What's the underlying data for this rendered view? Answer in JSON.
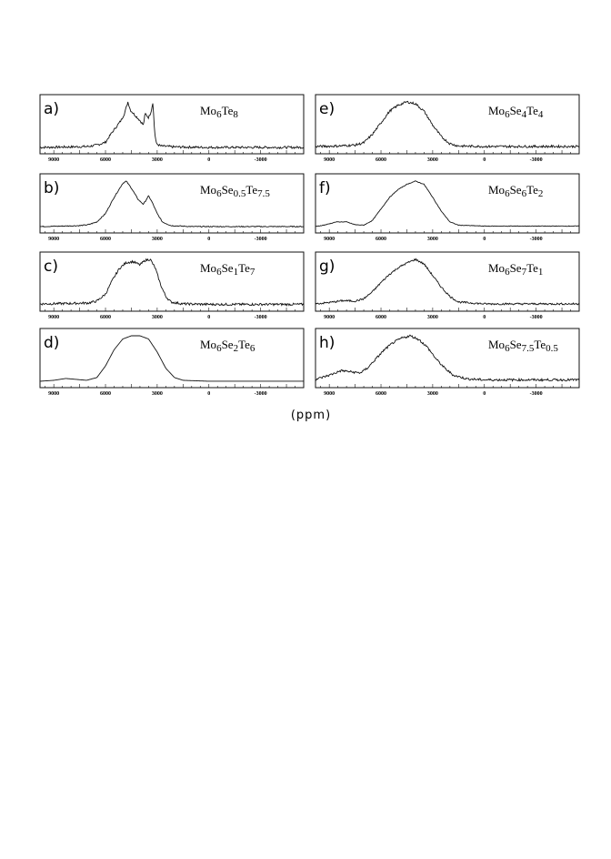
{
  "figure": {
    "xlabel": "(ppm)",
    "x_ticks": [
      9000,
      6000,
      3000,
      0,
      -3000
    ],
    "x_tick_labels": [
      "9000",
      "6000",
      "3000",
      "0",
      "-3000"
    ]
  },
  "chart_data": [
    {
      "type": "line",
      "panel": "a)",
      "formula": {
        "parts": [
          [
            "Mo",
            ""
          ],
          [
            "6",
            "sub"
          ],
          [
            "Te",
            ""
          ],
          [
            "8",
            "sub"
          ]
        ]
      },
      "xlabel": "(ppm)",
      "xlim": [
        9800,
        -5500
      ],
      "reversed_x": true,
      "grid": false,
      "baseline_noise": 0.025,
      "series": [
        {
          "points": [
            [
              9800,
              0.02
            ],
            [
              8000,
              0.03
            ],
            [
              7000,
              0.04
            ],
            [
              6500,
              0.07
            ],
            [
              6000,
              0.13
            ],
            [
              5700,
              0.3
            ],
            [
              5400,
              0.45
            ],
            [
              5100,
              0.6
            ],
            [
              4900,
              0.75
            ],
            [
              4700,
              1.0
            ],
            [
              4550,
              0.82
            ],
            [
              4300,
              0.72
            ],
            [
              4000,
              0.6
            ],
            [
              3800,
              0.5
            ],
            [
              3700,
              0.75
            ],
            [
              3500,
              0.66
            ],
            [
              3350,
              0.8
            ],
            [
              3250,
              1.0
            ],
            [
              3150,
              0.35
            ],
            [
              3050,
              0.1
            ],
            [
              2800,
              0.05
            ],
            [
              2000,
              0.03
            ],
            [
              0,
              0.02
            ],
            [
              -5500,
              0.02
            ]
          ]
        }
      ]
    },
    {
      "type": "line",
      "panel": "b)",
      "formula": {
        "parts": [
          [
            "Mo",
            ""
          ],
          [
            "6",
            "sub"
          ],
          [
            "Se",
            ""
          ],
          [
            "0.5",
            "sub"
          ],
          [
            "Te",
            ""
          ],
          [
            "7.5",
            "sub"
          ]
        ]
      },
      "xlabel": "(ppm)",
      "xlim": [
        9800,
        -5500
      ],
      "reversed_x": true,
      "grid": false,
      "baseline_noise": 0.01,
      "series": [
        {
          "points": [
            [
              9800,
              0.02
            ],
            [
              8500,
              0.03
            ],
            [
              7500,
              0.04
            ],
            [
              7000,
              0.06
            ],
            [
              6500,
              0.12
            ],
            [
              6000,
              0.3
            ],
            [
              5500,
              0.65
            ],
            [
              5000,
              0.95
            ],
            [
              4800,
              1.0
            ],
            [
              4500,
              0.85
            ],
            [
              4100,
              0.6
            ],
            [
              3800,
              0.5
            ],
            [
              3500,
              0.68
            ],
            [
              3300,
              0.55
            ],
            [
              3000,
              0.3
            ],
            [
              2700,
              0.12
            ],
            [
              2200,
              0.04
            ],
            [
              1000,
              0.02
            ],
            [
              -5500,
              0.02
            ]
          ]
        }
      ]
    },
    {
      "type": "line",
      "panel": "c)",
      "formula": {
        "parts": [
          [
            "Mo",
            ""
          ],
          [
            "6",
            "sub"
          ],
          [
            "Se",
            ""
          ],
          [
            "1",
            "sub"
          ],
          [
            "Te",
            ""
          ],
          [
            "7",
            "sub"
          ]
        ]
      },
      "xlabel": "(ppm)",
      "xlim": [
        9800,
        -5500
      ],
      "reversed_x": true,
      "grid": false,
      "baseline_noise": 0.025,
      "series": [
        {
          "points": [
            [
              9800,
              0.04
            ],
            [
              8000,
              0.05
            ],
            [
              7000,
              0.06
            ],
            [
              6500,
              0.1
            ],
            [
              6000,
              0.25
            ],
            [
              5600,
              0.55
            ],
            [
              5200,
              0.8
            ],
            [
              4800,
              0.93
            ],
            [
              4400,
              0.95
            ],
            [
              4000,
              0.88
            ],
            [
              3700,
              0.98
            ],
            [
              3400,
              1.0
            ],
            [
              3100,
              0.8
            ],
            [
              2800,
              0.45
            ],
            [
              2500,
              0.2
            ],
            [
              2200,
              0.08
            ],
            [
              1500,
              0.04
            ],
            [
              0,
              0.03
            ],
            [
              -5500,
              0.03
            ]
          ]
        }
      ]
    },
    {
      "type": "line",
      "panel": "d)",
      "formula": {
        "parts": [
          [
            "Mo",
            ""
          ],
          [
            "6",
            "sub"
          ],
          [
            "Se",
            ""
          ],
          [
            "2",
            "sub"
          ],
          [
            "Te",
            ""
          ],
          [
            "6",
            "sub"
          ]
        ]
      },
      "xlabel": "(ppm)",
      "xlim": [
        9800,
        -5500
      ],
      "reversed_x": true,
      "grid": false,
      "baseline_noise": 0.0,
      "series": [
        {
          "points": [
            [
              9800,
              0.02
            ],
            [
              9000,
              0.04
            ],
            [
              8300,
              0.08
            ],
            [
              7700,
              0.06
            ],
            [
              7100,
              0.04
            ],
            [
              6500,
              0.1
            ],
            [
              6000,
              0.35
            ],
            [
              5500,
              0.7
            ],
            [
              5000,
              0.93
            ],
            [
              4500,
              1.0
            ],
            [
              4000,
              1.0
            ],
            [
              3500,
              0.93
            ],
            [
              3000,
              0.65
            ],
            [
              2500,
              0.3
            ],
            [
              2000,
              0.1
            ],
            [
              1500,
              0.04
            ],
            [
              0,
              0.02
            ],
            [
              -5500,
              0.02
            ]
          ]
        }
      ]
    },
    {
      "type": "line",
      "panel": "e)",
      "formula": {
        "parts": [
          [
            "Mo",
            ""
          ],
          [
            "6",
            "sub"
          ],
          [
            "Se",
            ""
          ],
          [
            "4",
            "sub"
          ],
          [
            "Te",
            ""
          ],
          [
            "4",
            "sub"
          ]
        ]
      },
      "xlabel": "(ppm)",
      "xlim": [
        9800,
        -5500
      ],
      "reversed_x": true,
      "grid": false,
      "baseline_noise": 0.025,
      "series": [
        {
          "points": [
            [
              9800,
              0.04
            ],
            [
              8500,
              0.05
            ],
            [
              7500,
              0.07
            ],
            [
              7000,
              0.12
            ],
            [
              6500,
              0.3
            ],
            [
              6000,
              0.55
            ],
            [
              5500,
              0.8
            ],
            [
              5000,
              0.93
            ],
            [
              4500,
              1.0
            ],
            [
              4000,
              0.96
            ],
            [
              3500,
              0.8
            ],
            [
              3000,
              0.5
            ],
            [
              2500,
              0.25
            ],
            [
              2000,
              0.1
            ],
            [
              1500,
              0.05
            ],
            [
              0,
              0.04
            ],
            [
              -5500,
              0.04
            ]
          ]
        }
      ]
    },
    {
      "type": "line",
      "panel": "f)",
      "formula": {
        "parts": [
          [
            "Mo",
            ""
          ],
          [
            "6",
            "sub"
          ],
          [
            "Se",
            ""
          ],
          [
            "6",
            "sub"
          ],
          [
            "Te",
            ""
          ],
          [
            "2",
            "sub"
          ]
        ]
      },
      "xlabel": "(ppm)",
      "xlim": [
        9800,
        -5500
      ],
      "reversed_x": true,
      "grid": false,
      "baseline_noise": 0.006,
      "series": [
        {
          "points": [
            [
              9800,
              0.02
            ],
            [
              9200,
              0.06
            ],
            [
              8600,
              0.12
            ],
            [
              8000,
              0.12
            ],
            [
              7500,
              0.06
            ],
            [
              7000,
              0.05
            ],
            [
              6500,
              0.15
            ],
            [
              6000,
              0.4
            ],
            [
              5500,
              0.65
            ],
            [
              5000,
              0.82
            ],
            [
              4500,
              0.93
            ],
            [
              4000,
              1.0
            ],
            [
              3500,
              0.93
            ],
            [
              3000,
              0.65
            ],
            [
              2500,
              0.35
            ],
            [
              2000,
              0.12
            ],
            [
              1500,
              0.05
            ],
            [
              0,
              0.03
            ],
            [
              -5500,
              0.03
            ]
          ]
        }
      ]
    },
    {
      "type": "line",
      "panel": "g)",
      "formula": {
        "parts": [
          [
            "Mo",
            ""
          ],
          [
            "6",
            "sub"
          ],
          [
            "Se",
            ""
          ],
          [
            "7",
            "sub"
          ],
          [
            "Te",
            ""
          ],
          [
            "1",
            "sub"
          ]
        ]
      },
      "xlabel": "(ppm)",
      "xlim": [
        9800,
        -5500
      ],
      "reversed_x": true,
      "grid": false,
      "baseline_noise": 0.02,
      "series": [
        {
          "points": [
            [
              9800,
              0.04
            ],
            [
              9000,
              0.07
            ],
            [
              8200,
              0.11
            ],
            [
              7500,
              0.1
            ],
            [
              7000,
              0.15
            ],
            [
              6500,
              0.3
            ],
            [
              6000,
              0.5
            ],
            [
              5500,
              0.68
            ],
            [
              5000,
              0.82
            ],
            [
              4500,
              0.92
            ],
            [
              4000,
              1.0
            ],
            [
              3500,
              0.9
            ],
            [
              3000,
              0.65
            ],
            [
              2500,
              0.4
            ],
            [
              2000,
              0.2
            ],
            [
              1500,
              0.08
            ],
            [
              0,
              0.04
            ],
            [
              -5500,
              0.04
            ]
          ]
        }
      ]
    },
    {
      "type": "line",
      "panel": "h)",
      "formula": {
        "parts": [
          [
            "Mo",
            ""
          ],
          [
            "6",
            "sub"
          ],
          [
            "Se",
            ""
          ],
          [
            "7.5",
            "sub"
          ],
          [
            "Te",
            ""
          ],
          [
            "0.5",
            "sub"
          ]
        ]
      },
      "xlabel": "(ppm)",
      "xlim": [
        9800,
        -5500
      ],
      "reversed_x": true,
      "grid": false,
      "baseline_noise": 0.025,
      "series": [
        {
          "points": [
            [
              9800,
              0.06
            ],
            [
              9000,
              0.15
            ],
            [
              8300,
              0.25
            ],
            [
              7700,
              0.22
            ],
            [
              7200,
              0.2
            ],
            [
              6800,
              0.3
            ],
            [
              6300,
              0.5
            ],
            [
              5800,
              0.7
            ],
            [
              5300,
              0.85
            ],
            [
              4800,
              0.95
            ],
            [
              4300,
              1.0
            ],
            [
              3800,
              0.92
            ],
            [
              3300,
              0.75
            ],
            [
              2800,
              0.5
            ],
            [
              2300,
              0.3
            ],
            [
              1800,
              0.15
            ],
            [
              1000,
              0.07
            ],
            [
              0,
              0.05
            ],
            [
              -5500,
              0.05
            ]
          ]
        }
      ]
    }
  ]
}
